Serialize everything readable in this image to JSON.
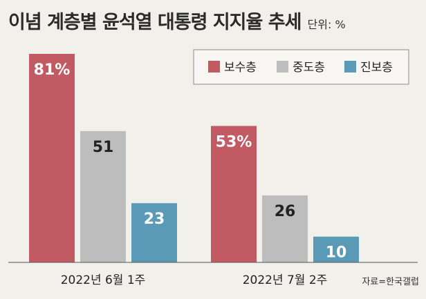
{
  "title": "이념 계층별 윤석열 대통령 지지율 추세",
  "unit": "단위: %",
  "source": "자료=한국갤럽",
  "chart_data": {
    "type": "bar",
    "categories": [
      "2022년 6월 1주",
      "2022년 7월 2주"
    ],
    "series": [
      {
        "name": "보수층",
        "color": "#c25a64",
        "labelColor": "#ffffff",
        "values": [
          81,
          53
        ],
        "labels": [
          "81%",
          "53%"
        ]
      },
      {
        "name": "중도층",
        "color": "#bdbdbd",
        "labelColor": "#222222",
        "values": [
          51,
          26
        ],
        "labels": [
          "51",
          "26"
        ]
      },
      {
        "name": "진보층",
        "color": "#5b9ab6",
        "labelColor": "#ffffff",
        "values": [
          23,
          10
        ],
        "labels": [
          "23",
          "10"
        ]
      }
    ],
    "ylim": [
      0,
      81
    ],
    "legend": "top-right",
    "grid": false
  }
}
